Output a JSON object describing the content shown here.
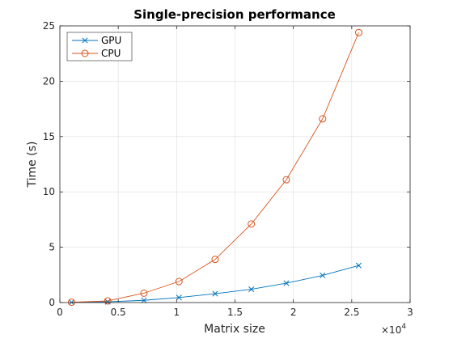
{
  "chart_data": {
    "type": "line",
    "title": "Single-precision performance",
    "xlabel": "Matrix size",
    "ylabel": "Time (s)",
    "x_exponent_label": "×10",
    "x_exponent_power": "4",
    "xlim": [
      0,
      30000
    ],
    "ylim": [
      0,
      25
    ],
    "xticks": [
      0,
      5000,
      10000,
      15000,
      20000,
      25000,
      30000
    ],
    "xtick_labels": [
      "0",
      "0.5",
      "1",
      "1.5",
      "2",
      "2.5",
      "3"
    ],
    "yticks": [
      0,
      5,
      10,
      15,
      20,
      25
    ],
    "ytick_labels": [
      "0",
      "5",
      "10",
      "15",
      "20",
      "25"
    ],
    "grid": true,
    "legend_position": "top-left",
    "x": [
      1000,
      4100,
      7200,
      10200,
      13300,
      16400,
      19400,
      22500,
      25600
    ],
    "series": [
      {
        "name": "GPU",
        "color": "#0072bd",
        "marker": "x",
        "values": [
          0.02,
          0.07,
          0.2,
          0.45,
          0.8,
          1.2,
          1.75,
          2.45,
          3.35
        ]
      },
      {
        "name": "CPU",
        "color": "#d95319",
        "marker": "circle",
        "values": [
          0.03,
          0.15,
          0.85,
          1.9,
          3.9,
          7.1,
          11.1,
          16.6,
          24.4
        ]
      }
    ]
  }
}
